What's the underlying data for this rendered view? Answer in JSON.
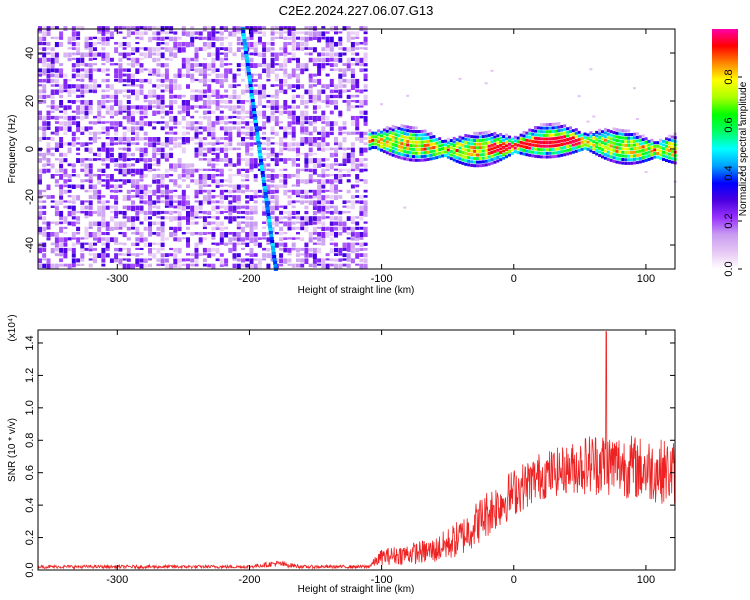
{
  "title": "C2E2.2024.227.06.07.G13",
  "chart_data": [
    {
      "type": "heatmap",
      "xlabel": "Height of straight line (km)",
      "ylabel": "Frequency (Hz)",
      "xlim": [
        -360,
        122
      ],
      "ylim": [
        -50,
        50
      ],
      "x_ticks": [
        -300,
        -200,
        -100,
        0,
        100
      ],
      "y_ticks": [
        -40,
        -20,
        0,
        20,
        40
      ],
      "colorbar": {
        "label": "Normalized spectral amplitude",
        "range": [
          0,
          1
        ],
        "ticks": [
          "0.0",
          "0.2",
          "0.4",
          "0.6",
          "0.8"
        ],
        "colors": [
          "#ffffff",
          "#e6c8f5",
          "#c89cf0",
          "#9933ff",
          "#4b00e0",
          "#0000ff",
          "#00a0ff",
          "#00ffff",
          "#00ff66",
          "#00ff00",
          "#aaff00",
          "#ffff00",
          "#ff8800",
          "#ff0000",
          "#ff00aa"
        ]
      },
      "regions": {
        "noise_band": {
          "x": [
            -360,
            -112
          ],
          "freq": [
            -50,
            50
          ],
          "amplitude": [
            0.05,
            0.3
          ]
        },
        "tracked_signal": {
          "x": [
            -110,
            122
          ],
          "freq_center": [
            2,
            6
          ],
          "amplitude_peak": 0.95
        },
        "diagonal_streak": {
          "x_start": -205,
          "x_end": -180,
          "freq": [
            50,
            -50
          ]
        }
      }
    },
    {
      "type": "line",
      "xlabel": "Height of straight line (km)",
      "ylabel": "SNR (10 * v/v)",
      "exponent_label": "(x10⁴)",
      "xlim": [
        -360,
        122
      ],
      "ylim": [
        0,
        1.48
      ],
      "x_ticks": [
        -300,
        -200,
        -100,
        0,
        100
      ],
      "y_ticks": [
        "0.0",
        "0.2",
        "0.4",
        "0.6",
        "0.8",
        "1.0",
        "1.2",
        "1.4"
      ],
      "color": "#ee2222",
      "trend": {
        "x": [
          -360,
          -200,
          -180,
          -160,
          -110,
          -100,
          -60,
          -40,
          -20,
          0,
          20,
          40,
          60,
          80,
          100,
          122
        ],
        "y": [
          0.02,
          0.02,
          0.04,
          0.02,
          0.02,
          0.08,
          0.12,
          0.2,
          0.35,
          0.48,
          0.58,
          0.62,
          0.66,
          0.65,
          0.62,
          0.6
        ],
        "noise": [
          0.01,
          0.01,
          0.02,
          0.01,
          0.01,
          0.05,
          0.08,
          0.12,
          0.15,
          0.15,
          0.15,
          0.15,
          0.2,
          0.2,
          0.2,
          0.2
        ]
      },
      "peak": {
        "x": 70,
        "y": 1.47
      }
    }
  ]
}
